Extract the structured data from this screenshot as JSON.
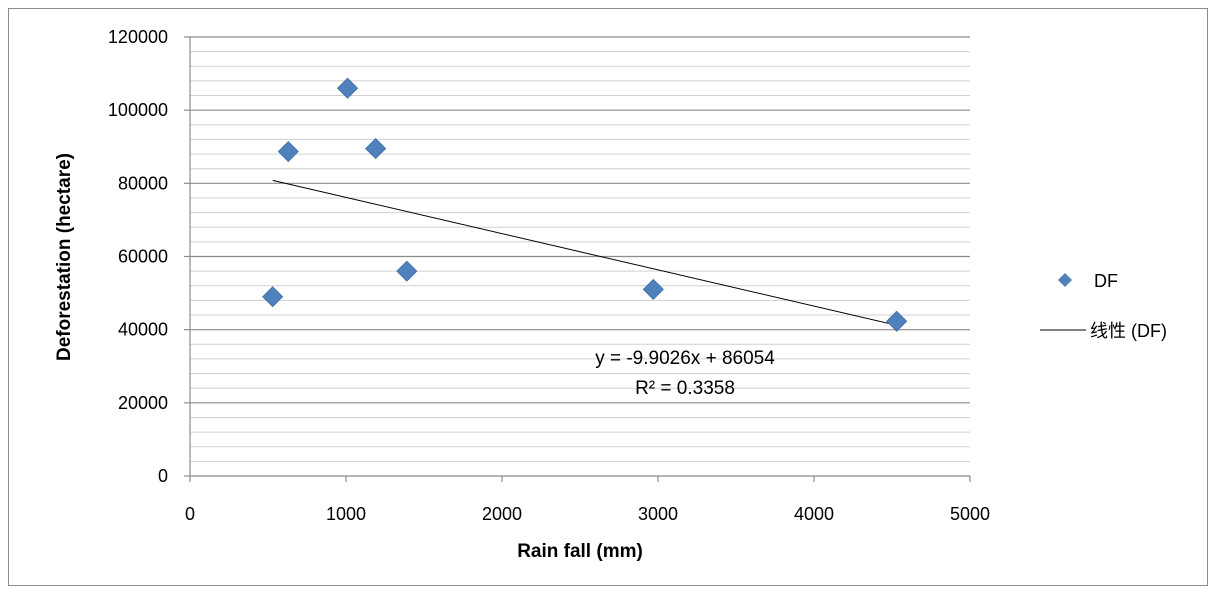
{
  "chart_data": {
    "type": "scatter",
    "xlabel": "Rain fall (mm)",
    "ylabel": "Deforestation (hectare)",
    "xlim": [
      0,
      5000
    ],
    "ylim": [
      0,
      120000
    ],
    "x_ticks": [
      "0",
      "1000",
      "2000",
      "3000",
      "4000",
      "5000"
    ],
    "y_ticks": [
      "0",
      "20000",
      "40000",
      "60000",
      "80000",
      "100000",
      "120000"
    ],
    "grid": "horizontal major and minor gridlines",
    "legend_position": "right",
    "series": [
      {
        "name": "DF",
        "marker": "diamond",
        "color": "#4f81bd",
        "points": [
          {
            "x": 530,
            "y": 49000
          },
          {
            "x": 630,
            "y": 88700
          },
          {
            "x": 1010,
            "y": 106000
          },
          {
            "x": 1190,
            "y": 89500
          },
          {
            "x": 1390,
            "y": 56000
          },
          {
            "x": 2970,
            "y": 51000
          },
          {
            "x": 4530,
            "y": 42300
          }
        ]
      }
    ],
    "trendline": {
      "name": "线性 (DF)",
      "slope": -9.9026,
      "intercept": 86054,
      "x_range": [
        530,
        4530
      ],
      "color": "#000000",
      "equation": "y = -9.9026x + 86054",
      "r_squared": "R² = 0.3358"
    }
  }
}
